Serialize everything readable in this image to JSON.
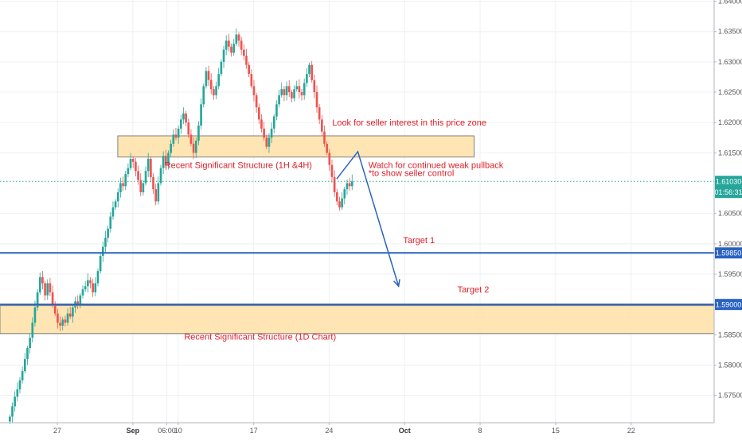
{
  "chart_data": {
    "type": "candlestick",
    "grid": true,
    "colors": {
      "up": "#26a69a",
      "down": "#ef5350",
      "zone_fill": "#ffe0a6",
      "zone_border": "#666666",
      "level_line": "#2a62c0",
      "arrow": "#2a62c0",
      "annotation_text": "#e0202a",
      "current_price": "#26a69a"
    },
    "ylim": [
      1.5705,
      1.6402
    ],
    "y_ticks": [
      {
        "value": 1.64,
        "label": "1.64000"
      },
      {
        "value": 1.635,
        "label": "1.63500"
      },
      {
        "value": 1.63,
        "label": "1.63000"
      },
      {
        "value": 1.625,
        "label": "1.62500"
      },
      {
        "value": 1.62,
        "label": "1.62000"
      },
      {
        "value": 1.615,
        "label": "1.61500"
      },
      {
        "value": 1.605,
        "label": "1.60500"
      },
      {
        "value": 1.6,
        "label": "1.60000"
      },
      {
        "value": 1.595,
        "label": "1.59500"
      },
      {
        "value": 1.585,
        "label": "1.58500"
      },
      {
        "value": 1.58,
        "label": "1.58000"
      },
      {
        "value": 1.575,
        "label": "1.57500"
      }
    ],
    "x_ticks": [
      {
        "day": 27,
        "label": "27",
        "bold": false
      },
      {
        "day": 32,
        "label": "Sep",
        "bold": true
      },
      {
        "day": 34.25,
        "label": "06:00",
        "bold": false
      },
      {
        "day": 35,
        "label": "10",
        "bold": false
      },
      {
        "day": 40,
        "label": "17",
        "bold": false
      },
      {
        "day": 45,
        "label": "24",
        "bold": false
      },
      {
        "day": 50,
        "label": "Oct",
        "bold": true
      },
      {
        "day": 55,
        "label": "8",
        "bold": false
      },
      {
        "day": 60,
        "label": "15",
        "bold": false
      },
      {
        "day": 65,
        "label": "22",
        "bold": false
      }
    ],
    "xlim": [
      23.2,
      70.5
    ],
    "candle_width_days": 0.14,
    "candle_step_days": 0.1667,
    "candle_start_day": 23.85,
    "closes": [
      1.5715,
      1.5732,
      1.5748,
      1.576,
      1.5775,
      1.579,
      1.581,
      1.5828,
      1.5845,
      1.587,
      1.5895,
      1.592,
      1.5945,
      1.5935,
      1.5915,
      1.5935,
      1.592,
      1.59,
      1.5885,
      1.587,
      1.5865,
      1.5875,
      1.587,
      1.5885,
      1.588,
      1.5895,
      1.5905,
      1.59,
      1.5915,
      1.5925,
      1.593,
      1.594,
      1.5935,
      1.592,
      1.5935,
      1.5955,
      1.598,
      1.5995,
      1.601,
      1.6025,
      1.6045,
      1.606,
      1.607,
      1.6085,
      1.61,
      1.6095,
      1.6115,
      1.6125,
      1.614,
      1.6135,
      1.612,
      1.6105,
      1.6085,
      1.61,
      1.612,
      1.614,
      1.611,
      1.609,
      1.607,
      1.61,
      1.6125,
      1.6145,
      1.613,
      1.615,
      1.6165,
      1.618,
      1.6175,
      1.619,
      1.6205,
      1.6215,
      1.62,
      1.618,
      1.6165,
      1.615,
      1.617,
      1.6195,
      1.623,
      1.626,
      1.6285,
      1.627,
      1.6255,
      1.6245,
      1.626,
      1.628,
      1.63,
      1.632,
      1.6335,
      1.6325,
      1.6315,
      1.633,
      1.6345,
      1.6335,
      1.632,
      1.631,
      1.6295,
      1.628,
      1.626,
      1.6245,
      1.6225,
      1.6205,
      1.619,
      1.6175,
      1.616,
      1.6175,
      1.619,
      1.621,
      1.623,
      1.6245,
      1.6255,
      1.6245,
      1.626,
      1.625,
      1.624,
      1.6255,
      1.626,
      1.625,
      1.6245,
      1.6265,
      1.628,
      1.6295,
      1.627,
      1.625,
      1.6225,
      1.6205,
      1.6185,
      1.6165,
      1.615,
      1.613,
      1.611,
      1.6085,
      1.607,
      1.606,
      1.6075,
      1.609,
      1.61,
      1.6095,
      1.6103
    ]
  },
  "zones": [
    {
      "name": "upper-structure-zone",
      "day_start": 31.0,
      "day_end": 54.6,
      "y_top": 1.6178,
      "y_bottom": 1.6143
    },
    {
      "name": "lower-structure-zone",
      "day_start": 23.2,
      "day_end": 70.5,
      "y_top": 1.5898,
      "y_bottom": 1.5852
    }
  ],
  "levels": [
    {
      "name": "target-1-level",
      "value": 1.5985,
      "label": "1.59850"
    },
    {
      "name": "target-2-level",
      "value": 1.59,
      "label": "1.59000"
    }
  ],
  "current_price": {
    "value": 1.6103,
    "label": "1.61030",
    "countdown": "01:56:31"
  },
  "projection_path": [
    {
      "day": 45.5,
      "price": 1.6107
    },
    {
      "day": 46.9,
      "price": 1.6152
    },
    {
      "day": 49.6,
      "price": 1.593
    }
  ],
  "annotations": {
    "seller_zone_note": {
      "text": "Look for seller interest in this price zone",
      "day": 45.2,
      "price": 1.6195
    },
    "structure_1h4h": {
      "text": "Recent Significant Structure (1H &4H)",
      "day": 34.1,
      "price": 1.6125
    },
    "pullback_note_1": {
      "text": "Watch for continued weak pullback",
      "day": 47.6,
      "price": 1.6125
    },
    "pullback_note_2": {
      "text": "*to show seller control",
      "day": 47.6,
      "price": 1.6112
    },
    "target_1": {
      "text": "Target 1",
      "day": 49.9,
      "price": 1.6001
    },
    "target_2": {
      "text": "Target 2",
      "day": 53.5,
      "price": 1.592
    },
    "structure_1d": {
      "text": "Recent Significant Structure (1D Chart)",
      "day": 35.4,
      "price": 1.5842
    }
  }
}
